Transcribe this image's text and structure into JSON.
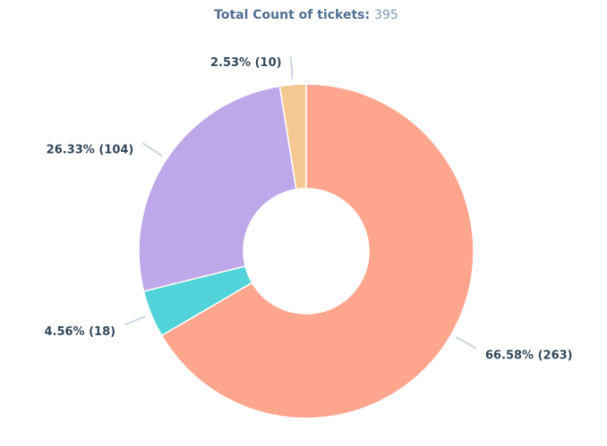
{
  "chart_data": {
    "type": "donut",
    "title": "Total Count of tickets:",
    "total": 395,
    "categories": [
      null,
      null,
      null,
      null
    ],
    "values": [
      263,
      18,
      104,
      10
    ],
    "value_labels": [
      "66.58% (263)",
      "4.56% (18)",
      "26.33% (104)",
      "2.53% (10)"
    ],
    "colors": [
      "#fea58e",
      "#51d3d9",
      "#bea8e9",
      "#f5c892"
    ]
  }
}
